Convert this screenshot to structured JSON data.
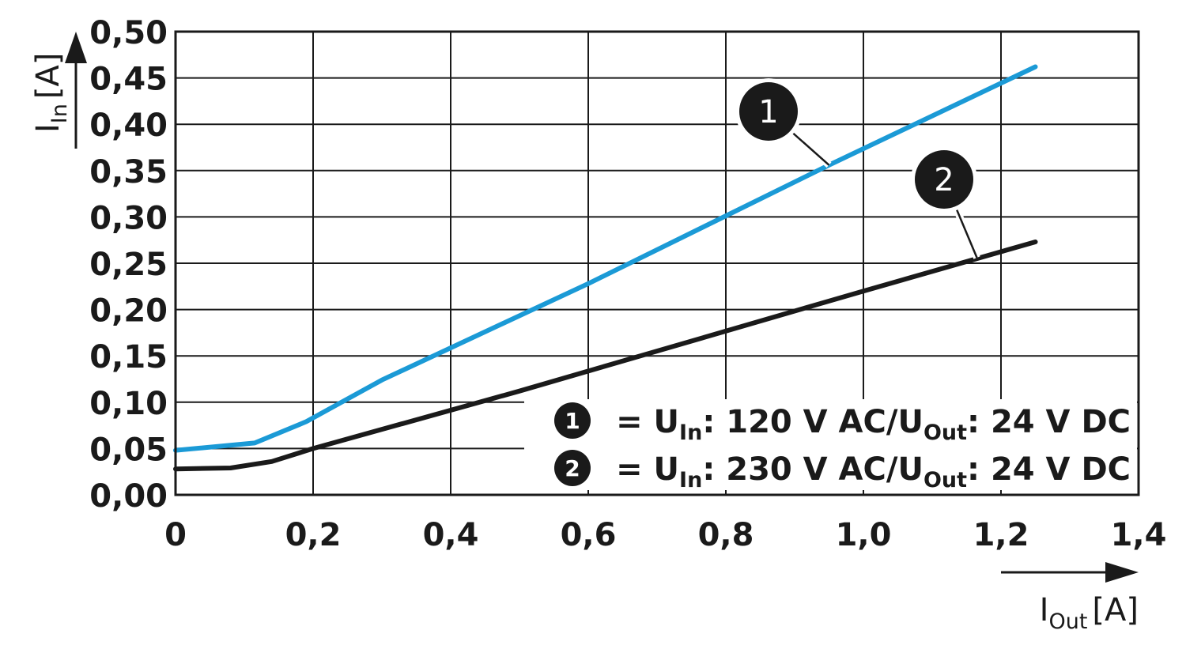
{
  "chart_data": {
    "type": "line",
    "title": "",
    "xlabel": {
      "main": "I",
      "sub": "Out",
      "unit": "[A]"
    },
    "ylabel": {
      "main": "I",
      "sub": "In",
      "unit": "[A]"
    },
    "xlim": [
      0,
      1.4
    ],
    "ylim": [
      0,
      0.5
    ],
    "x_ticks": [
      "0",
      "0,2",
      "0,4",
      "0,6",
      "0,8",
      "1,0",
      "1,2",
      "1,4"
    ],
    "y_ticks": [
      "0,00",
      "0,05",
      "0,10",
      "0,15",
      "0,20",
      "0,25",
      "0,30",
      "0,35",
      "0,40",
      "0,45",
      "0,50"
    ],
    "grid": true,
    "legend_position": "bottom-right",
    "series": [
      {
        "id": "1",
        "color": "#1b9ad6",
        "points": [
          [
            0,
            0.048
          ],
          [
            0.115,
            0.056
          ],
          [
            0.19,
            0.079
          ],
          [
            0.3,
            0.124
          ],
          [
            0.6,
            0.228
          ],
          [
            0.95,
            0.356
          ],
          [
            1.25,
            0.462
          ]
        ],
        "legend": {
          "marker": "1",
          "pre": "= U",
          "sub1": "In",
          "mid": ": 120 V AC/U",
          "sub2": "Out",
          "post": ": 24 V DC"
        },
        "callout": {
          "label": "1",
          "at": [
            0.95,
            0.356
          ]
        }
      },
      {
        "id": "2",
        "color": "#1a1a1a",
        "points": [
          [
            0,
            0.028
          ],
          [
            0.08,
            0.029
          ],
          [
            0.14,
            0.036
          ],
          [
            0.2,
            0.05
          ],
          [
            0.5,
            0.112
          ],
          [
            1.0,
            0.22
          ],
          [
            1.25,
            0.273
          ]
        ],
        "legend": {
          "marker": "2",
          "pre": "= U",
          "sub1": "In",
          "mid": ": 230 V AC/U",
          "sub2": "Out",
          "post": ": 24 V DC"
        },
        "callout": {
          "label": "2",
          "at": [
            1.165,
            0.256
          ]
        }
      }
    ]
  }
}
